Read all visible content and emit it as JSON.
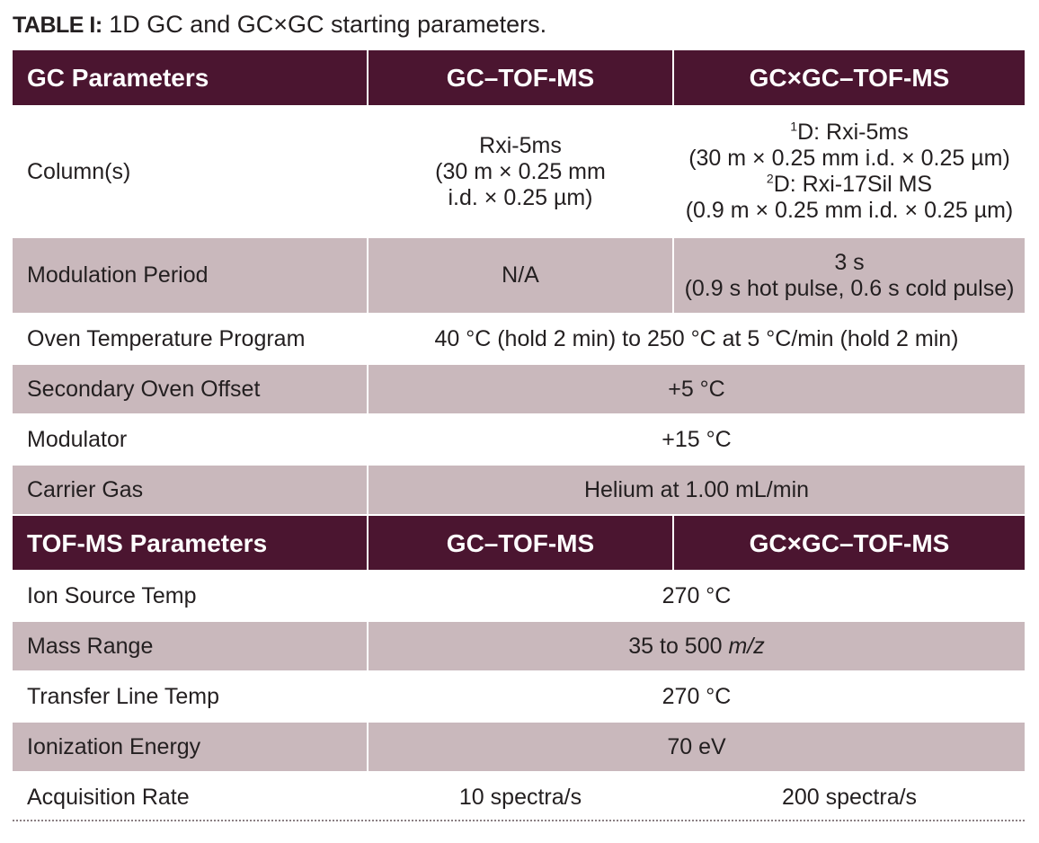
{
  "caption": {
    "lead": "TABLE I:",
    "text": " 1D GC and GC×GC starting parameters."
  },
  "gc_header": {
    "label": "GC Parameters",
    "col2": "GC–TOF-MS",
    "col3": "GC×GC–TOF-MS"
  },
  "column_row": {
    "label": "Column(s)",
    "col2_lines": [
      "Rxi-5ms",
      "(30 m × 0.25 mm",
      "i.d. × 0.25 µm)"
    ],
    "col3_line1_sup": "1",
    "col3_line1": "D:  Rxi-5ms",
    "col3_line2": "(30 m × 0.25 mm i.d. × 0.25 µm)",
    "col3_line3_sup": "2",
    "col3_line3": "D: Rxi-17Sil MS",
    "col3_line4": "(0.9 m × 0.25 mm i.d. × 0.25 µm)"
  },
  "modulation_row": {
    "label": "Modulation Period",
    "col2": "N/A",
    "col3_line1": "3 s",
    "col3_line2": "(0.9 s hot pulse, 0.6 s cold pulse)"
  },
  "gc_rows": [
    {
      "label": "Oven Temperature Program",
      "value": "40 °C (hold 2 min) to 250 °C at 5 °C/min (hold 2 min)"
    },
    {
      "label": "Secondary Oven Offset",
      "value": "+5 °C"
    },
    {
      "label": "Modulator",
      "value": "+15 °C"
    },
    {
      "label": "Carrier Gas",
      "value": "Helium at 1.00 mL/min"
    }
  ],
  "tof_header": {
    "label": "TOF-MS Parameters",
    "col2": "GC–TOF-MS",
    "col3": "GC×GC–TOF-MS"
  },
  "tof_rows": [
    {
      "label": "Ion Source Temp",
      "value": "270 °C"
    },
    {
      "label": "Mass Range",
      "value": "35 to 500 ",
      "value_italic": "m/z"
    },
    {
      "label": "Transfer Line Temp",
      "value": "270 °C"
    },
    {
      "label": "Ionization Energy",
      "value": "70 eV"
    }
  ],
  "acquisition_row": {
    "label": "Acquisition Rate",
    "col2": "10 spectra/s",
    "col3": "200 spectra/s"
  }
}
